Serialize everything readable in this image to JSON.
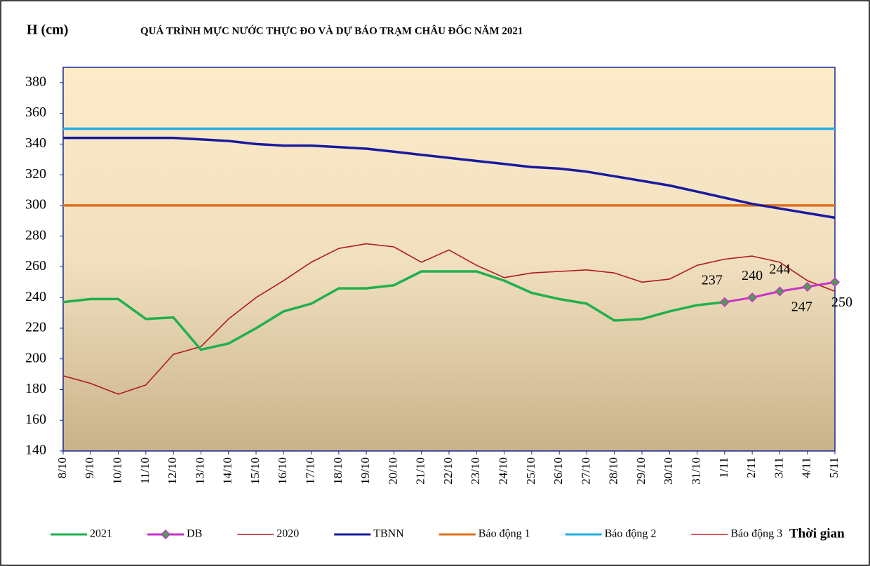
{
  "chart_data": {
    "type": "line",
    "title": "QUÁ TRÌNH MỰC NƯỚC THỰC ĐO VÀ DỰ BÁO TRẠM CHÂU ĐỐC NĂM 2021",
    "y_label": "H (cm)",
    "x_label": "Thời gian",
    "categories": [
      "8/10",
      "9/10",
      "10/10",
      "11/10",
      "12/10",
      "13/10",
      "14/10",
      "15/10",
      "16/10",
      "17/10",
      "18/10",
      "19/10",
      "20/10",
      "21/10",
      "22/10",
      "23/10",
      "24/10",
      "25/10",
      "26/10",
      "27/10",
      "28/10",
      "29/10",
      "30/10",
      "31/10",
      "1/11",
      "2/11",
      "3/11",
      "4/11",
      "5/11"
    ],
    "ylim": [
      140,
      390
    ],
    "yticks": [
      140,
      160,
      180,
      200,
      220,
      240,
      260,
      280,
      300,
      320,
      340,
      360,
      380
    ],
    "series": [
      {
        "name": "2021",
        "color": "#1fb04c",
        "values": [
          237,
          239,
          239,
          226,
          227,
          206,
          210,
          220,
          231,
          236,
          246,
          246,
          248,
          257,
          257,
          257,
          251,
          243,
          239,
          236,
          225,
          226,
          231,
          235,
          237,
          null,
          null,
          null,
          null
        ]
      },
      {
        "name": "DB",
        "color": "#c832c8",
        "marker_color": "#4aa050",
        "values": [
          null,
          null,
          null,
          null,
          null,
          null,
          null,
          null,
          null,
          null,
          null,
          null,
          null,
          null,
          null,
          null,
          null,
          null,
          null,
          null,
          null,
          null,
          null,
          null,
          237,
          240,
          244,
          247,
          250
        ]
      },
      {
        "name": "2020",
        "color": "#b01c1c",
        "values": [
          189,
          184,
          177,
          183,
          203,
          208,
          226,
          240,
          251,
          263,
          272,
          275,
          273,
          263,
          271,
          261,
          253,
          256,
          257,
          258,
          256,
          250,
          252,
          261,
          265,
          267,
          263,
          251,
          244
        ]
      },
      {
        "name": "TBNN",
        "color": "#1a1aa0",
        "values": [
          344,
          344,
          344,
          344,
          344,
          343,
          342,
          340,
          339,
          339,
          338,
          337,
          335,
          333,
          331,
          329,
          327,
          325,
          324,
          322,
          319,
          316,
          313,
          309,
          305,
          301,
          298,
          295,
          292
        ]
      },
      {
        "name": "Báo động 1",
        "color": "#e0701a",
        "values": [
          300,
          300,
          300,
          300,
          300,
          300,
          300,
          300,
          300,
          300,
          300,
          300,
          300,
          300,
          300,
          300,
          300,
          300,
          300,
          300,
          300,
          300,
          300,
          300,
          300,
          300,
          300,
          300,
          300
        ]
      },
      {
        "name": "Báo động 2",
        "color": "#20b0e8",
        "values": [
          350,
          350,
          350,
          350,
          350,
          350,
          350,
          350,
          350,
          350,
          350,
          350,
          350,
          350,
          350,
          350,
          350,
          350,
          350,
          350,
          350,
          350,
          350,
          350,
          350,
          350,
          350,
          350,
          350
        ]
      },
      {
        "name": "Báo động 3",
        "color": "#cc2020",
        "values": [
          null,
          null,
          null,
          null,
          null,
          null,
          null,
          null,
          null,
          null,
          null,
          null,
          null,
          null,
          null,
          null,
          null,
          null,
          null,
          null,
          null,
          null,
          null,
          null,
          null,
          null,
          null,
          null,
          null
        ]
      }
    ]
  }
}
